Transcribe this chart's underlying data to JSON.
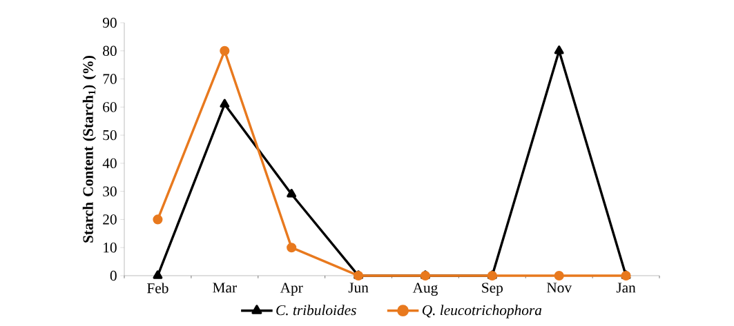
{
  "chart_data": {
    "type": "line",
    "ylabel": "**Starch Content (Starch$_{1}$) (%)**",
    "categories": [
      "Feb",
      "Mar",
      "Apr",
      "Jun",
      "Aug",
      "Sep",
      "Nov",
      "Jan"
    ],
    "series": [
      {
        "name": "*C. tribuloides*",
        "color": "#000000",
        "marker": "triangle",
        "values": [
          0,
          61,
          29,
          0,
          0,
          0,
          80,
          0
        ]
      },
      {
        "name": "*Q. leucotrichophora*",
        "color": "#e8791e",
        "marker": "circle",
        "values": [
          20,
          80,
          10,
          0,
          0,
          0,
          0,
          0
        ]
      }
    ],
    "ylim": [
      0,
      90
    ],
    "yticks": [
      0,
      10,
      20,
      30,
      40,
      50,
      60,
      70,
      80,
      90
    ],
    "legend": "bottom"
  }
}
